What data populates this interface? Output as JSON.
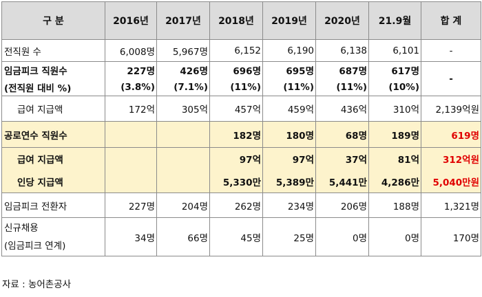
{
  "headers": [
    "구 분",
    "2016년",
    "2017년",
    "2018년",
    "2019년",
    "2020년",
    "21.9월",
    "합 계"
  ],
  "rows": {
    "total_staff": {
      "label": "전직원 수",
      "values": [
        "6,008명",
        "5,967명",
        "6,152",
        "6,190",
        "6,138",
        "6,101",
        "-"
      ]
    },
    "peak_staff": {
      "label1": "임금피크 직원수",
      "label2": "(전직원 대비 %)",
      "values": [
        "227명",
        "426명",
        "696명",
        "695명",
        "687명",
        "617명",
        "-"
      ],
      "percents": [
        "(3.8%)",
        "(7.1%)",
        "(11%)",
        "(11%)",
        "(11%)",
        "(10%)"
      ]
    },
    "salary_paid": {
      "label": "급여 지급액",
      "values": [
        "172억",
        "305억",
        "457억",
        "459억",
        "436억",
        "310억",
        "2,139억원"
      ]
    },
    "public_staff": {
      "label": "공로연수 직원수",
      "values": [
        "",
        "",
        "182명",
        "180명",
        "68명",
        "189명",
        "619명"
      ]
    },
    "public_salary": {
      "label": "급여 지급액",
      "values": [
        "",
        "",
        "97억",
        "97억",
        "37억",
        "81억",
        "312억원"
      ]
    },
    "per_person": {
      "label": "인당 지급액",
      "values": [
        "",
        "",
        "5,330만",
        "5,389만",
        "5,441만",
        "4,286만",
        "5,040만원"
      ]
    },
    "converted": {
      "label": "임금피크 전환자",
      "values": [
        "227명",
        "204명",
        "262명",
        "234명",
        "206명",
        "188명",
        "1,321명"
      ]
    },
    "new_hire": {
      "label1": "신규채용",
      "label2": "(임금피크 연계)",
      "values": [
        "34명",
        "66명",
        "45명",
        "25명",
        "0명",
        "0명",
        "170명"
      ]
    }
  },
  "source": "자료 : 농어촌공사",
  "colors": {
    "header_bg": "#dcdcdc",
    "highlight_bg": "#fdf3cc",
    "total_red": "#e00000"
  }
}
